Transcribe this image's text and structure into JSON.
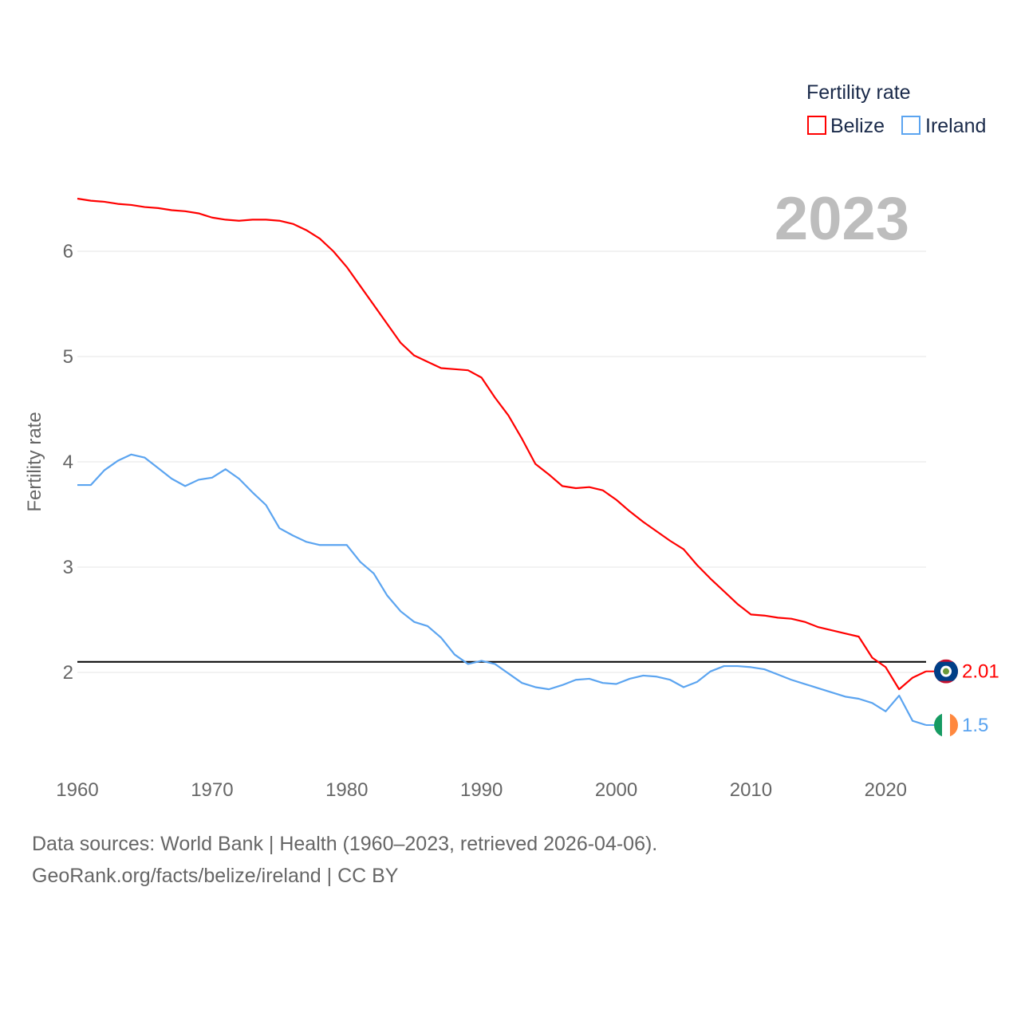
{
  "chart_data": {
    "type": "line",
    "title": "",
    "xlabel": "",
    "ylabel": "Fertility rate",
    "xlim": [
      1960,
      2023
    ],
    "ylim": [
      0.95,
      6.75
    ],
    "x_ticks": [
      1960,
      1970,
      1980,
      1990,
      2000,
      2010,
      2020
    ],
    "y_ticks": [
      2,
      3,
      4,
      5,
      6
    ],
    "grid": true,
    "legend": {
      "title": "Fertility rate",
      "placement": "top-right"
    },
    "year_label": "2023",
    "reference_line": {
      "y": 2.1,
      "color": "#000000"
    },
    "x": [
      1960,
      1961,
      1962,
      1963,
      1964,
      1965,
      1966,
      1967,
      1968,
      1969,
      1970,
      1971,
      1972,
      1973,
      1974,
      1975,
      1976,
      1977,
      1978,
      1979,
      1980,
      1981,
      1982,
      1983,
      1984,
      1985,
      1986,
      1987,
      1988,
      1989,
      1990,
      1991,
      1992,
      1993,
      1994,
      1995,
      1996,
      1997,
      1998,
      1999,
      2000,
      2001,
      2002,
      2003,
      2004,
      2005,
      2006,
      2007,
      2008,
      2009,
      2010,
      2011,
      2012,
      2013,
      2014,
      2015,
      2016,
      2017,
      2018,
      2019,
      2020,
      2021,
      2022,
      2023
    ],
    "series": [
      {
        "name": "Belize",
        "color": "#ff0000",
        "end_label": "2.01",
        "values": [
          6.5,
          6.48,
          6.47,
          6.45,
          6.44,
          6.42,
          6.41,
          6.39,
          6.38,
          6.36,
          6.32,
          6.3,
          6.29,
          6.3,
          6.3,
          6.29,
          6.26,
          6.2,
          6.12,
          6.0,
          5.85,
          5.67,
          5.49,
          5.31,
          5.13,
          5.01,
          4.95,
          4.89,
          4.88,
          4.87,
          4.8,
          4.61,
          4.44,
          4.22,
          3.98,
          3.88,
          3.77,
          3.75,
          3.76,
          3.73,
          3.64,
          3.53,
          3.43,
          3.34,
          3.25,
          3.17,
          3.02,
          2.89,
          2.77,
          2.65,
          2.55,
          2.54,
          2.52,
          2.51,
          2.48,
          2.43,
          2.4,
          2.37,
          2.34,
          2.14,
          2.05,
          1.84,
          1.95,
          2.01
        ]
      },
      {
        "name": "Ireland",
        "color": "#5ba4f0",
        "end_label": "1.5",
        "values": [
          3.78,
          3.78,
          3.92,
          4.01,
          4.07,
          4.04,
          3.94,
          3.84,
          3.77,
          3.83,
          3.85,
          3.93,
          3.84,
          3.71,
          3.59,
          3.37,
          3.3,
          3.24,
          3.21,
          3.21,
          3.21,
          3.05,
          2.94,
          2.73,
          2.58,
          2.48,
          2.44,
          2.33,
          2.17,
          2.08,
          2.11,
          2.08,
          1.99,
          1.9,
          1.86,
          1.84,
          1.88,
          1.93,
          1.94,
          1.9,
          1.89,
          1.94,
          1.97,
          1.96,
          1.93,
          1.86,
          1.91,
          2.01,
          2.06,
          2.06,
          2.05,
          2.03,
          1.98,
          1.93,
          1.89,
          1.85,
          1.81,
          1.77,
          1.75,
          1.71,
          1.63,
          1.78,
          1.54,
          1.5
        ]
      }
    ]
  },
  "footer": {
    "line1": "Data sources: World Bank | Health (1960–2023, retrieved 2026-04-06).",
    "line2": "GeoRank.org/facts/belize/ireland | CC BY"
  }
}
